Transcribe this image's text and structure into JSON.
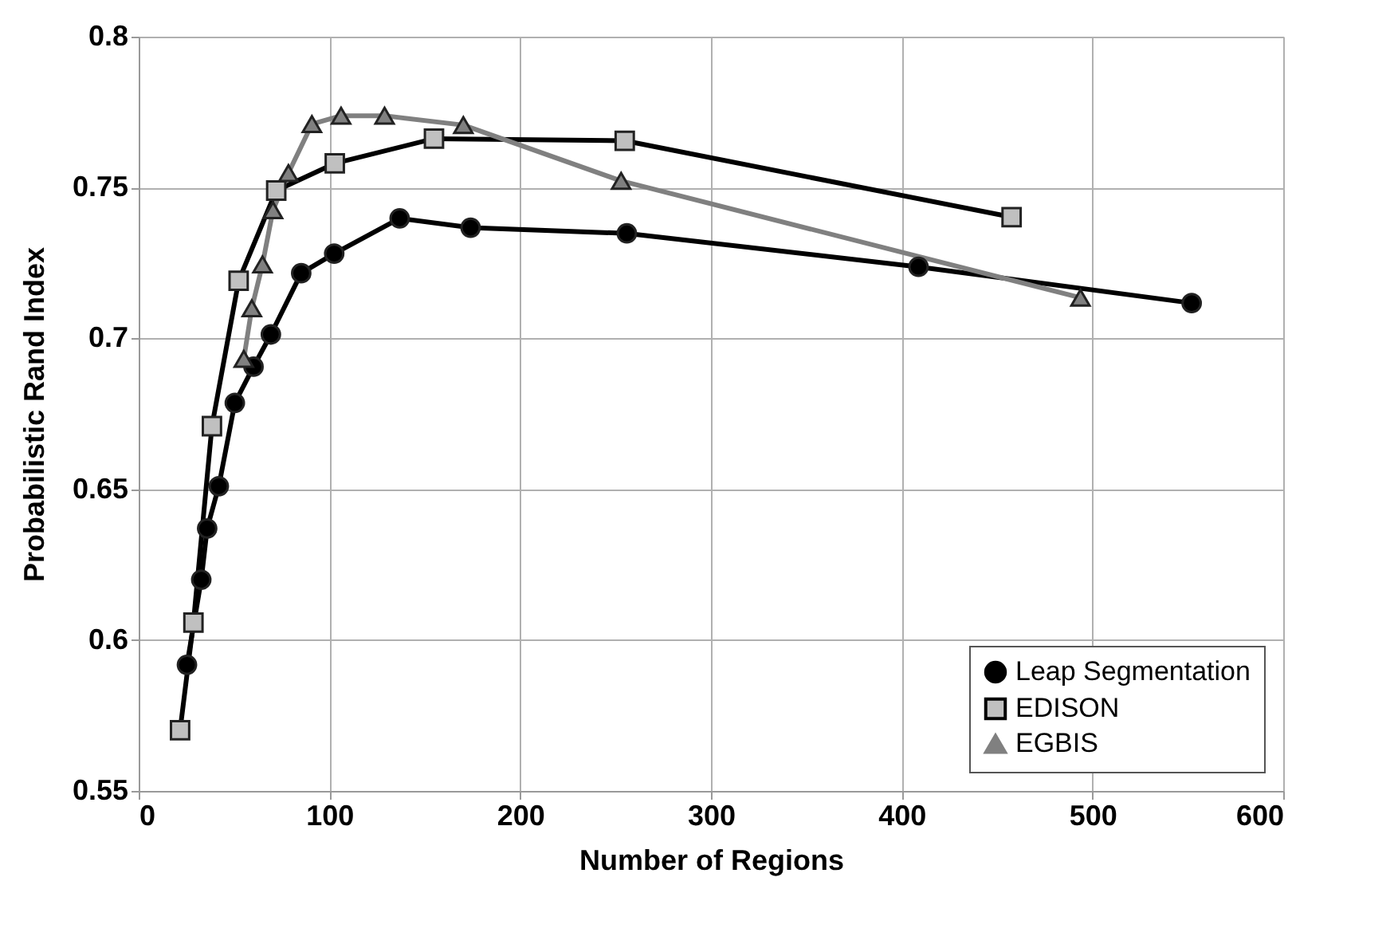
{
  "chart_data": {
    "type": "line",
    "xlabel": "Number of Regions",
    "ylabel": "Probabilistic Rand Index",
    "xlim": [
      0,
      600
    ],
    "xticks": [
      0,
      100,
      200,
      300,
      400,
      500,
      600
    ],
    "ylim": [
      0.55,
      0.8
    ],
    "yticks": [
      0.55,
      {
        "value": 0.6,
        "label": "0.6"
      },
      0.65,
      {
        "value": 0.7,
        "label": "0.7"
      },
      0.75,
      {
        "value": 0.8,
        "label": "0.8"
      }
    ],
    "grid": true,
    "legend": "bottom right",
    "series": [
      {
        "name": "Leap Segmentation",
        "color": "#000000",
        "marker": "circle",
        "x": [
          25.3,
          32.8,
          35.9,
          42.0,
          50.4,
          60.2,
          69.3,
          85.2,
          102.5,
          136.8,
          174.0,
          255.9,
          408.8,
          552.0
        ],
        "values": [
          0.5918,
          0.62,
          0.637,
          0.651,
          0.6786,
          0.6906,
          0.7013,
          0.7216,
          0.7281,
          0.7398,
          0.7367,
          0.7348,
          0.7237,
          0.7117
        ]
      },
      {
        "name": "EDISON",
        "color": "#000000",
        "marker": "square",
        "x": [
          21.7,
          28.7,
          38.4,
          52.4,
          72.1,
          102.8,
          154.8,
          254.8,
          457.6
        ],
        "values": [
          0.5701,
          0.6058,
          0.6709,
          0.7191,
          0.749,
          0.758,
          0.7662,
          0.7655,
          0.7402
        ]
      },
      {
        "name": "EGBIS",
        "color": "#808080",
        "marker": "triangle",
        "x": [
          55.1,
          59.3,
          64.9,
          70.4,
          78.5,
          90.8,
          106.1,
          128.9,
          170.2,
          252.9,
          493.7
        ],
        "values": [
          0.6932,
          0.71,
          0.7245,
          0.7425,
          0.7548,
          0.771,
          0.7738,
          0.7738,
          0.7707,
          0.7522,
          0.7135
        ]
      }
    ]
  }
}
